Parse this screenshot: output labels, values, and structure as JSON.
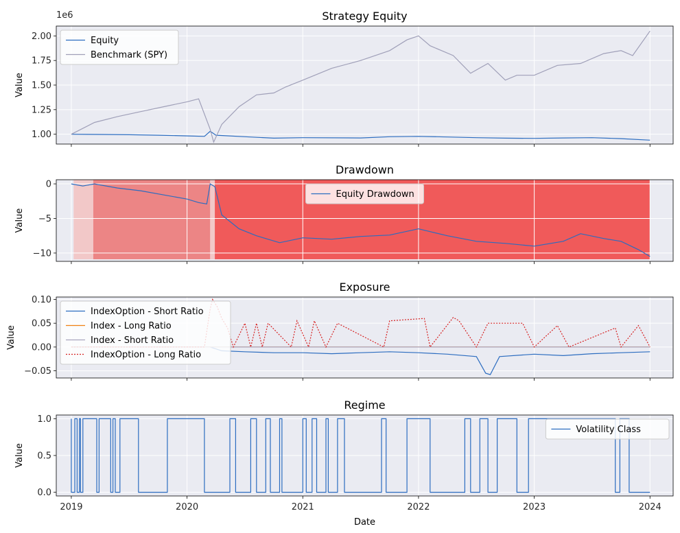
{
  "colors": {
    "background": "#ffffff",
    "plot_bg": "#eaebf2",
    "grid": "#ffffff",
    "equity": "#2b6cc0",
    "benchmark": "#9f9fb8",
    "drawdown_fill_dark": "#f05a5a",
    "drawdown_fill_mid": "#ec8585",
    "drawdown_fill_light": "#f2c8c8",
    "long_index": "#f08010",
    "short_index": "#a9a4be",
    "long_option": "#d62020",
    "volatility": "#2b6cc0"
  },
  "chart_data": [
    {
      "type": "line",
      "title": "Strategy Equity",
      "xlabel": "",
      "ylabel": "Value",
      "y_offset_label": "1e6",
      "xlim": [
        2018.87,
        2024.2
      ],
      "ylim": [
        0.9,
        2.1
      ],
      "yticks": [
        "1.00",
        "1.25",
        "1.50",
        "1.75",
        "2.00"
      ],
      "ytick_values": [
        1.0,
        1.25,
        1.5,
        1.75,
        2.0
      ],
      "grid": true,
      "legend": "top-left",
      "series": [
        {
          "name": "Equity",
          "x": [
            2019.0,
            2019.25,
            2019.5,
            2019.75,
            2020.0,
            2020.15,
            2020.2,
            2020.25,
            2020.5,
            2020.75,
            2021.0,
            2021.5,
            2021.75,
            2022.0,
            2022.25,
            2022.5,
            2022.75,
            2023.0,
            2023.25,
            2023.5,
            2023.75,
            2024.0
          ],
          "values": [
            1.0,
            0.998,
            0.995,
            0.99,
            0.983,
            0.978,
            1.03,
            0.99,
            0.975,
            0.96,
            0.965,
            0.962,
            0.975,
            0.978,
            0.972,
            0.965,
            0.96,
            0.958,
            0.962,
            0.965,
            0.955,
            0.94
          ]
        },
        {
          "name": "Benchmark (SPY)",
          "x": [
            2019.0,
            2019.2,
            2019.4,
            2019.6,
            2019.8,
            2020.0,
            2020.1,
            2020.2,
            2020.23,
            2020.3,
            2020.45,
            2020.6,
            2020.75,
            2020.85,
            2021.0,
            2021.25,
            2021.5,
            2021.75,
            2021.9,
            2022.0,
            2022.1,
            2022.3,
            2022.45,
            2022.6,
            2022.75,
            2022.85,
            2023.0,
            2023.2,
            2023.4,
            2023.6,
            2023.75,
            2023.85,
            2024.0
          ],
          "values": [
            1.0,
            1.12,
            1.18,
            1.23,
            1.28,
            1.33,
            1.36,
            1.05,
            0.92,
            1.1,
            1.28,
            1.4,
            1.42,
            1.48,
            1.55,
            1.67,
            1.75,
            1.85,
            1.96,
            2.0,
            1.9,
            1.8,
            1.62,
            1.72,
            1.55,
            1.6,
            1.6,
            1.7,
            1.72,
            1.82,
            1.85,
            1.8,
            2.05
          ]
        }
      ]
    },
    {
      "type": "area",
      "title": "Drawdown",
      "xlabel": "",
      "ylabel": "Value",
      "xlim": [
        2018.87,
        2024.2
      ],
      "ylim": [
        -11.2,
        0.6
      ],
      "yticks": [
        "0",
        "−5",
        "−10"
      ],
      "ytick_values": [
        0,
        -5,
        -10
      ],
      "grid": true,
      "legend": "top-center",
      "series": [
        {
          "name": "Equity Drawdown",
          "x": [
            2019.0,
            2019.1,
            2019.2,
            2019.4,
            2019.6,
            2019.8,
            2020.0,
            2020.1,
            2020.17,
            2020.2,
            2020.24,
            2020.3,
            2020.45,
            2020.6,
            2020.8,
            2021.0,
            2021.25,
            2021.5,
            2021.75,
            2022.0,
            2022.25,
            2022.5,
            2022.75,
            2023.0,
            2023.25,
            2023.4,
            2023.6,
            2023.75,
            2023.9,
            2024.0
          ],
          "values": [
            0,
            -0.3,
            0.0,
            -0.6,
            -1.0,
            -1.6,
            -2.2,
            -2.7,
            -2.9,
            0.0,
            -0.4,
            -4.5,
            -6.5,
            -7.5,
            -8.5,
            -7.8,
            -8.0,
            -7.6,
            -7.4,
            -6.5,
            -7.5,
            -8.3,
            -8.6,
            -9.0,
            -8.3,
            -7.2,
            -7.9,
            -8.3,
            -9.5,
            -10.5
          ]
        }
      ],
      "shaded_regions": [
        {
          "x": [
            2019.02,
            2019.19
          ],
          "shade": "light"
        },
        {
          "x": [
            2019.19,
            2020.2
          ],
          "shade": "mid"
        },
        {
          "x": [
            2020.2,
            2020.24
          ],
          "shade": "light"
        },
        {
          "x": [
            2020.24,
            2024.0
          ],
          "shade": "dark"
        }
      ]
    },
    {
      "type": "line",
      "title": "Exposure",
      "xlabel": "",
      "ylabel": "Value",
      "xlim": [
        2018.87,
        2024.2
      ],
      "ylim": [
        -0.065,
        0.105
      ],
      "yticks": [
        "0.10",
        "0.05",
        "0.00",
        "−0.05"
      ],
      "ytick_values": [
        0.1,
        0.05,
        0.0,
        -0.05
      ],
      "grid": true,
      "legend": "top-left",
      "series": [
        {
          "name": "IndexOption - Short Ratio",
          "x": [
            2019.0,
            2019.5,
            2020.0,
            2020.1,
            2020.2,
            2020.3,
            2020.5,
            2020.75,
            2021.0,
            2021.25,
            2021.5,
            2021.75,
            2022.0,
            2022.25,
            2022.5,
            2022.58,
            2022.62,
            2022.7,
            2023.0,
            2023.25,
            2023.5,
            2023.75,
            2024.0
          ],
          "values": [
            0,
            0,
            0,
            0,
            0,
            -0.008,
            -0.01,
            -0.012,
            -0.012,
            -0.014,
            -0.012,
            -0.01,
            -0.012,
            -0.015,
            -0.02,
            -0.055,
            -0.058,
            -0.02,
            -0.015,
            -0.018,
            -0.014,
            -0.012,
            -0.01
          ]
        },
        {
          "name": "Index - Long Ratio",
          "x": [
            2019.0,
            2024.0
          ],
          "values": [
            0,
            0
          ]
        },
        {
          "name": "Index - Short Ratio",
          "x": [
            2019.0,
            2024.0
          ],
          "values": [
            0,
            0
          ]
        },
        {
          "name": "IndexOption - Long Ratio",
          "x": [
            2019.0,
            2020.15,
            2020.2,
            2020.22,
            2020.26,
            2020.3,
            2020.35,
            2020.4,
            2020.5,
            2020.55,
            2020.6,
            2020.65,
            2020.7,
            2020.9,
            2020.95,
            2021.05,
            2021.1,
            2021.2,
            2021.3,
            2021.7,
            2021.75,
            2022.05,
            2022.1,
            2022.3,
            2022.35,
            2022.5,
            2022.6,
            2022.9,
            2023.0,
            2023.2,
            2023.3,
            2023.7,
            2023.75,
            2023.9,
            2024.0
          ],
          "values": [
            0,
            0,
            0.08,
            0.1,
            0.085,
            0.06,
            0.04,
            0.0,
            0.05,
            0.0,
            0.05,
            0.0,
            0.05,
            0.0,
            0.055,
            0.0,
            0.055,
            0.0,
            0.05,
            0.0,
            0.055,
            0.06,
            0.0,
            0.062,
            0.055,
            0.0,
            0.05,
            0.05,
            0.0,
            0.045,
            0.0,
            0.04,
            0.0,
            0.045,
            0.0
          ]
        }
      ]
    },
    {
      "type": "line",
      "title": "Regime",
      "xlabel": "Date",
      "ylabel": "Value",
      "xlim": [
        2018.87,
        2024.2
      ],
      "ylim": [
        -0.05,
        1.05
      ],
      "yticks": [
        "0.0",
        "0.5",
        "1.0"
      ],
      "ytick_values": [
        0.0,
        0.5,
        1.0
      ],
      "xticks": [
        "2019",
        "2020",
        "2021",
        "2022",
        "2023",
        "2024"
      ],
      "xtick_values": [
        2019,
        2020,
        2021,
        2022,
        2023,
        2024
      ],
      "grid": true,
      "legend": "top-right",
      "series": [
        {
          "name": "Volatility Class",
          "x": [
            2019.0,
            2019.03,
            2019.05,
            2019.07,
            2019.08,
            2019.1,
            2019.22,
            2019.24,
            2019.34,
            2019.36,
            2019.38,
            2019.42,
            2019.58,
            2019.83,
            2020.15,
            2020.37,
            2020.42,
            2020.55,
            2020.6,
            2020.68,
            2020.72,
            2020.8,
            2020.82,
            2021.0,
            2021.03,
            2021.08,
            2021.12,
            2021.2,
            2021.22,
            2021.3,
            2021.36,
            2021.68,
            2021.72,
            2021.9,
            2022.1,
            2022.4,
            2022.45,
            2022.53,
            2022.6,
            2022.68,
            2022.85,
            2022.95,
            2023.7,
            2023.74,
            2023.82,
            2023.86,
            2024.0
          ],
          "values": [
            1,
            0,
            1,
            0,
            1,
            0,
            1,
            0,
            1,
            0,
            1,
            0,
            1,
            0,
            1,
            0,
            1,
            0,
            1,
            0,
            1,
            0,
            1,
            0,
            1,
            0,
            1,
            0,
            1,
            0,
            1,
            0,
            1,
            0,
            1,
            0,
            1,
            0,
            1,
            0,
            1,
            0,
            1,
            0,
            1,
            0,
            0
          ]
        }
      ]
    }
  ]
}
